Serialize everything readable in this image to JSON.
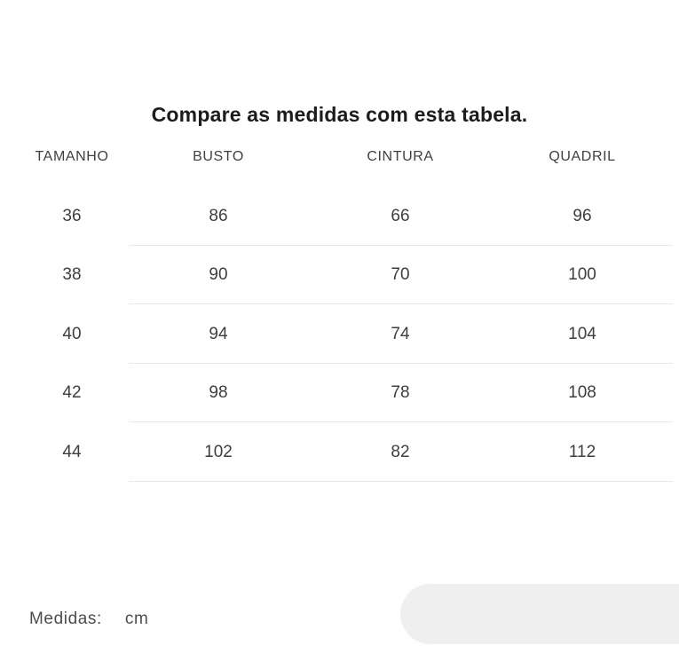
{
  "page": {
    "title": "Compare as medidas com esta tabela."
  },
  "table": {
    "headers": [
      "TAMANHO",
      "BUSTO",
      "CINTURA",
      "QUADRIL"
    ],
    "rows": [
      [
        "36",
        "86",
        "66",
        "96"
      ],
      [
        "38",
        "90",
        "70",
        "100"
      ],
      [
        "40",
        "94",
        "74",
        "104"
      ],
      [
        "42",
        "98",
        "78",
        "108"
      ],
      [
        "44",
        "102",
        "82",
        "112"
      ]
    ]
  },
  "footer": {
    "label": "Medidas:",
    "unit": "cm"
  },
  "colors": {
    "title_text": "#1c1c1c",
    "table_text": "#3e3e3e",
    "divider": "#e8e8e8",
    "pill_background": "#efefef",
    "page_background": "#ffffff"
  }
}
